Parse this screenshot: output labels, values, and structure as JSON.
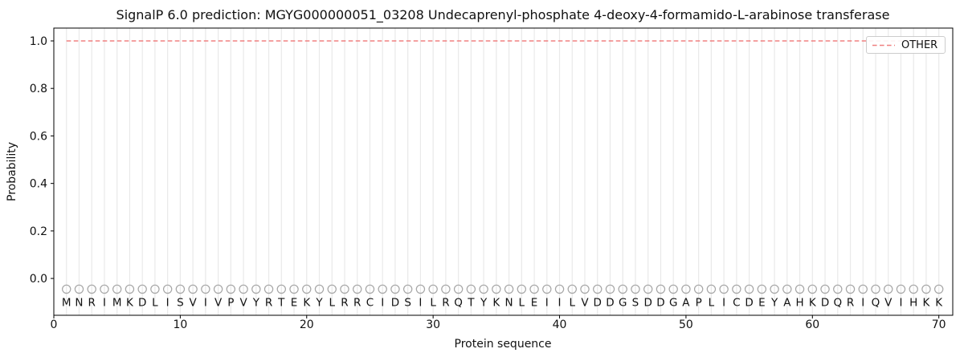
{
  "figure": {
    "title": "SignalP 6.0 prediction: MGYG000000051_03208 Undecaprenyl-phosphate 4-deoxy-4-formamido-L-arabinose transferase"
  },
  "chart_data": {
    "type": "line",
    "title": "SignalP 6.0 prediction: MGYG000000051_03208 Undecaprenyl-phosphate 4-deoxy-4-formamido-L-arabinose transferase",
    "xlabel": "Protein sequence",
    "ylabel": "Probability",
    "xlim": [
      0,
      71.1
    ],
    "ylim": [
      -0.155,
      1.054
    ],
    "xticks": [
      0,
      10,
      20,
      30,
      40,
      50,
      60,
      70
    ],
    "yticks": [
      0.0,
      0.2,
      0.4,
      0.6,
      0.8,
      1.0
    ],
    "grid": {
      "vertical_line_per_residue": true,
      "horizontal": false
    },
    "legend": {
      "position": "upper right",
      "entries": [
        {
          "label": "OTHER",
          "color": "#f08080",
          "linestyle": "dashed"
        }
      ]
    },
    "series": [
      {
        "name": "OTHER",
        "color": "#f08080",
        "linestyle": "dashed",
        "x_start": 1,
        "x_end": 70,
        "y_constant": 1.0
      }
    ],
    "sequence": [
      "M",
      "N",
      "R",
      "I",
      "M",
      "K",
      "D",
      "L",
      "I",
      "S",
      "V",
      "I",
      "V",
      "P",
      "V",
      "Y",
      "R",
      "T",
      "E",
      "K",
      "Y",
      "L",
      "R",
      "R",
      "C",
      "I",
      "D",
      "S",
      "I",
      "L",
      "R",
      "Q",
      "T",
      "Y",
      "K",
      "N",
      "L",
      "E",
      "I",
      "I",
      "L",
      "V",
      "D",
      "D",
      "G",
      "S",
      "D",
      "D",
      "G",
      "A",
      "P",
      "L",
      "I",
      "C",
      "D",
      "E",
      "Y",
      "A",
      "H",
      "K",
      "D",
      "Q",
      "R",
      "I",
      "Q",
      "V",
      "I",
      "H",
      "K",
      "K"
    ],
    "residue_markers": {
      "marker": "o",
      "y_value": -0.045
    }
  },
  "colors": {
    "background": "#ffffff",
    "text": "#111111",
    "spine": "#000000",
    "grid": "#e9e9e9",
    "other_line": "#f08080",
    "marker": "#a6a6a6",
    "legend_border": "#cccccc"
  }
}
